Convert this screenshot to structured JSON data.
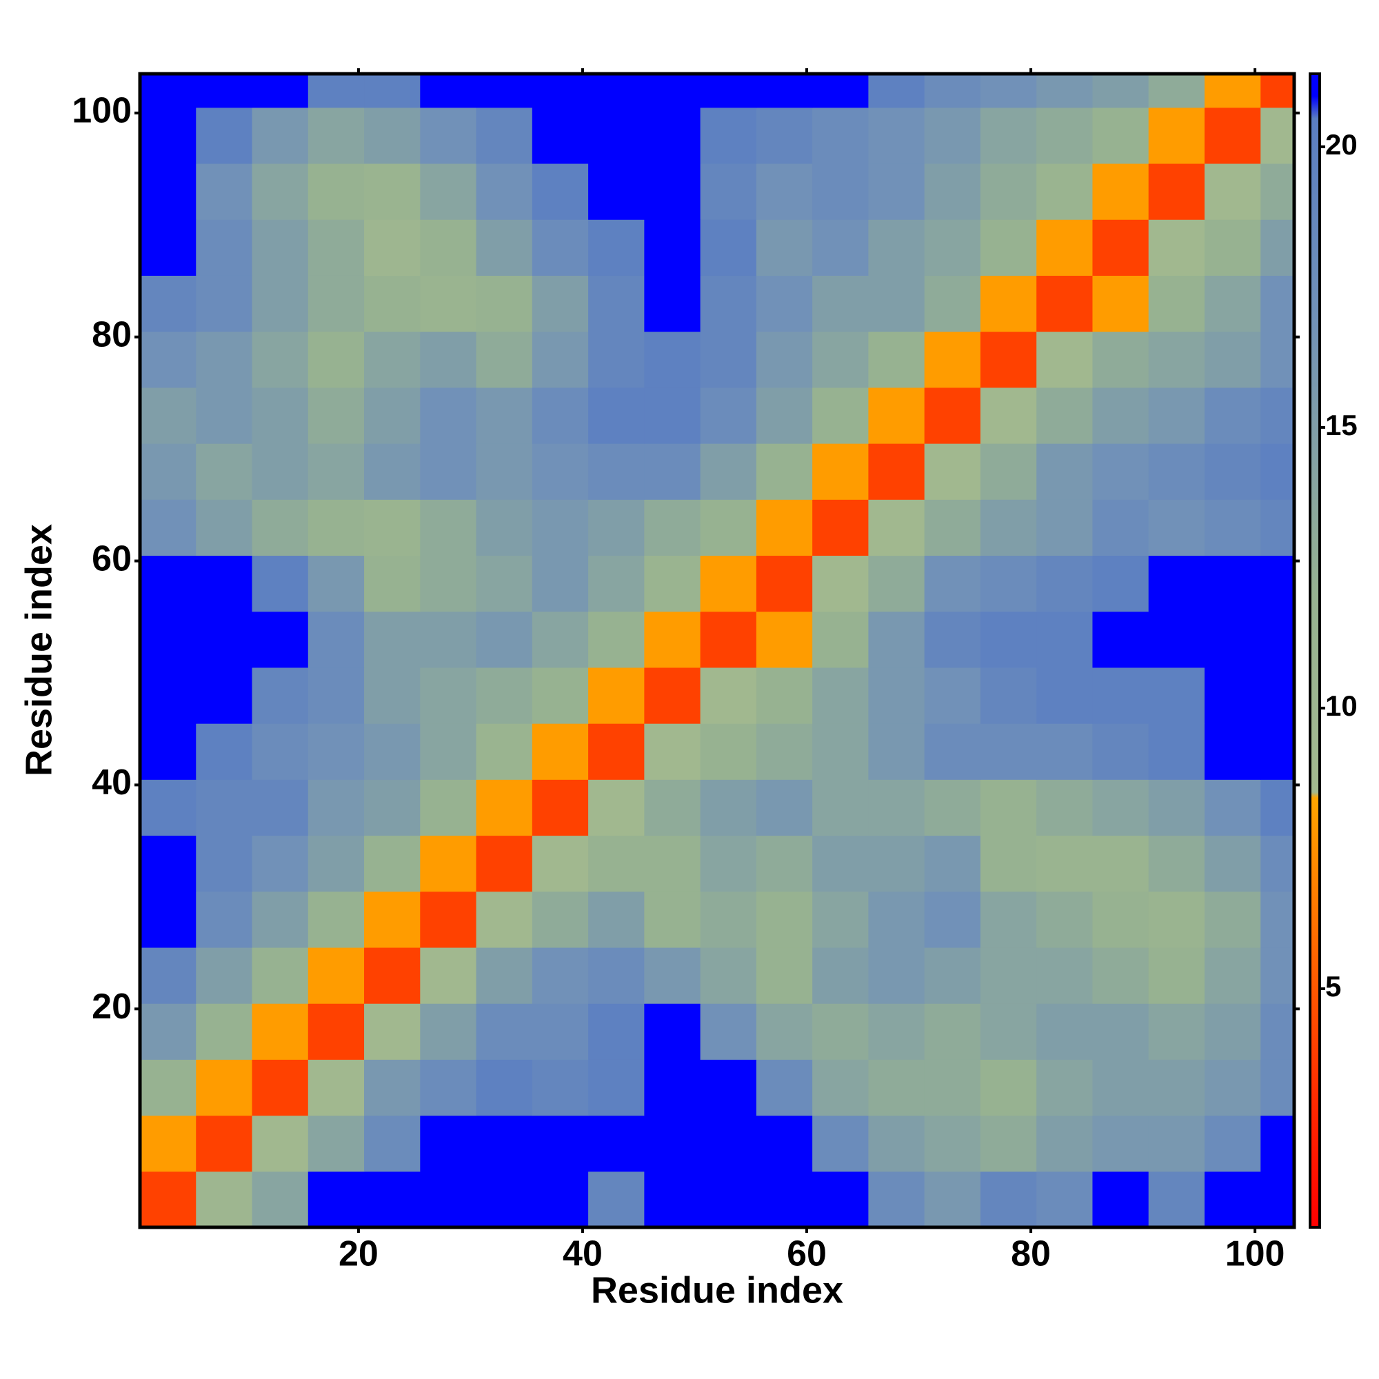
{
  "chart_data": {
    "type": "heatmap",
    "x_label": "Residue index",
    "y_label": "Residue index",
    "xlim": [
      0.5,
      103.5
    ],
    "ylim": [
      0.5,
      103.5
    ],
    "xticks": [
      20,
      40,
      60,
      80,
      100
    ],
    "yticks": [
      20,
      40,
      60,
      80,
      100
    ],
    "x_edges": [
      0.5,
      5.5,
      10.5,
      15.5,
      20.5,
      25.5,
      30.5,
      35.5,
      40.5,
      45.5,
      50.5,
      55.5,
      60.5,
      65.5,
      70.5,
      75.5,
      80.5,
      85.5,
      90.5,
      95.5,
      100.5,
      103.5
    ],
    "y_edges": [
      0.5,
      5.5,
      10.5,
      15.5,
      20.5,
      25.5,
      30.5,
      35.5,
      40.5,
      45.5,
      50.5,
      55.5,
      60.5,
      65.5,
      70.5,
      75.5,
      80.5,
      85.5,
      90.5,
      95.5,
      100.5,
      103.5
    ],
    "values": [
      [
        4,
        10,
        14,
        21,
        21,
        21,
        21,
        21,
        19,
        21,
        21,
        21,
        21,
        18,
        16,
        19,
        18,
        21,
        19,
        21,
        21
      ],
      [
        8,
        4,
        9,
        14,
        18,
        21,
        21,
        21,
        21,
        21,
        21,
        21,
        18,
        15,
        14,
        13,
        15,
        16,
        16,
        18,
        21
      ],
      [
        12,
        8,
        4,
        9,
        16,
        18,
        20,
        19,
        20,
        21,
        21,
        18,
        14,
        13,
        13,
        12,
        14,
        15,
        15,
        16,
        18
      ],
      [
        16,
        12,
        8,
        4,
        9,
        15,
        18,
        18,
        20,
        21,
        17,
        14,
        13,
        14,
        13,
        14,
        15,
        15,
        14,
        15,
        18
      ],
      [
        19,
        15,
        12,
        8,
        4,
        9,
        15,
        17,
        18,
        16,
        14,
        12,
        15,
        16,
        15,
        14,
        14,
        13,
        12,
        14,
        17
      ],
      [
        21,
        18,
        15,
        12,
        8,
        4,
        9,
        13,
        15,
        12,
        13,
        12,
        14,
        16,
        17,
        14,
        13,
        12,
        11,
        13,
        17
      ],
      [
        21,
        19,
        17,
        15,
        12,
        8,
        4,
        9,
        12,
        12,
        14,
        13,
        15,
        15,
        16,
        12,
        11,
        11,
        13,
        15,
        18
      ],
      [
        20,
        19,
        19,
        16,
        15,
        12,
        8,
        4,
        9,
        13,
        15,
        16,
        14,
        14,
        13,
        12,
        13,
        14,
        15,
        17,
        20
      ],
      [
        21,
        20,
        18,
        17,
        16,
        14,
        11,
        8,
        4,
        9,
        12,
        13,
        14,
        16,
        18,
        18,
        18,
        19,
        20,
        21,
        21
      ],
      [
        21,
        21,
        19,
        18,
        15,
        14,
        13,
        12,
        8,
        4,
        9,
        12,
        14,
        16,
        17,
        19,
        20,
        20,
        20,
        21,
        21
      ],
      [
        21,
        21,
        21,
        18,
        15,
        15,
        16,
        14,
        12,
        8,
        4,
        8,
        12,
        16,
        19,
        20,
        20,
        21,
        21,
        21,
        21
      ],
      [
        21,
        21,
        20,
        16,
        12,
        13,
        14,
        16,
        14,
        11,
        8,
        4,
        9,
        13,
        17,
        18,
        19,
        20,
        21,
        21,
        21
      ],
      [
        17,
        15,
        13,
        12,
        11,
        13,
        15,
        16,
        15,
        13,
        12,
        8,
        4,
        9,
        13,
        15,
        16,
        18,
        17,
        18,
        19
      ],
      [
        16,
        14,
        15,
        14,
        16,
        17,
        16,
        17,
        18,
        18,
        15,
        12,
        8,
        4,
        9,
        13,
        16,
        17,
        18,
        19,
        20
      ],
      [
        15,
        16,
        15,
        13,
        15,
        17,
        16,
        18,
        20,
        20,
        18,
        15,
        12,
        8,
        4,
        9,
        13,
        15,
        16,
        18,
        19
      ],
      [
        17,
        16,
        14,
        12,
        14,
        15,
        13,
        16,
        19,
        20,
        19,
        16,
        14,
        12,
        8,
        4,
        9,
        13,
        14,
        15,
        17
      ],
      [
        19,
        18,
        15,
        13,
        12,
        11,
        12,
        15,
        19,
        21,
        19,
        17,
        15,
        15,
        13,
        8,
        4,
        8,
        12,
        14,
        17
      ],
      [
        21,
        18,
        15,
        13,
        10,
        12,
        15,
        18,
        20,
        21,
        20,
        16,
        17,
        15,
        14,
        12,
        8,
        4,
        9,
        12,
        15
      ],
      [
        21,
        17,
        14,
        12,
        11,
        14,
        17,
        20,
        21,
        21,
        19,
        17,
        18,
        17,
        15,
        13,
        11,
        8,
        4,
        9,
        13
      ],
      [
        21,
        20,
        16,
        14,
        15,
        17,
        19,
        21,
        21,
        21,
        20,
        19,
        18,
        17,
        16,
        14,
        13,
        12,
        8,
        4,
        9
      ],
      [
        21,
        21,
        21,
        20,
        20,
        21,
        21,
        21,
        21,
        21,
        21,
        21,
        21,
        20,
        18,
        17,
        16,
        15,
        13,
        8,
        4
      ]
    ],
    "colorbar": {
      "lim": [
        0.75,
        21.3
      ],
      "ticks": [
        5,
        10,
        15,
        20
      ],
      "stops": [
        {
          "value": 0.75,
          "color": "#ff0000"
        },
        {
          "value": 3,
          "color": "#ff2a00"
        },
        {
          "value": 8.4,
          "color": "#ffa500"
        },
        {
          "value": 8.5,
          "color": "#a3b98f"
        },
        {
          "value": 12,
          "color": "#97b291"
        },
        {
          "value": 17,
          "color": "#7191b8"
        },
        {
          "value": 20.5,
          "color": "#5b7ec2"
        },
        {
          "value": 20.9,
          "color": "#0000ff"
        },
        {
          "value": 21.3,
          "color": "#0000ff"
        }
      ]
    }
  }
}
